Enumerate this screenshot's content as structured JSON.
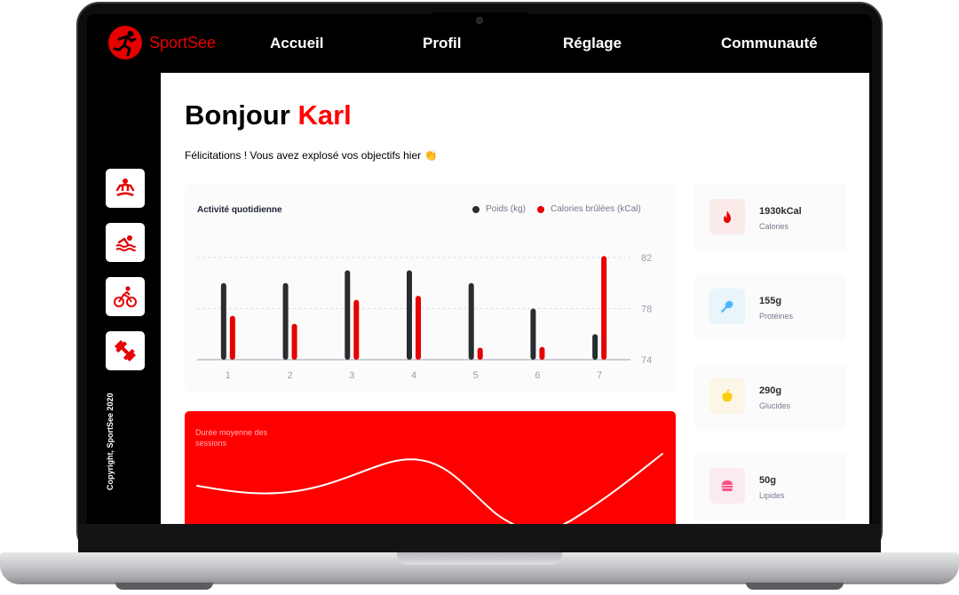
{
  "app": {
    "name": "SportSee"
  },
  "nav": {
    "items": [
      "Accueil",
      "Profil",
      "Réglage",
      "Communauté"
    ]
  },
  "sidebar": {
    "icons": [
      "meditation-icon",
      "swimming-icon",
      "cycling-icon",
      "dumbbell-icon"
    ],
    "copyright": "Copyright, SportSee 2020"
  },
  "greeting": {
    "hello": "Bonjour",
    "name": "Karl",
    "message": "Félicitations ! Vous avez explosé vos objectifs hier 👏"
  },
  "activity": {
    "title": "Activité quotidienne",
    "legend": {
      "weight": "Poids (kg)",
      "calories": "Calories brûlées (kCal)"
    }
  },
  "sessions": {
    "title": "Durée moyenne des sessions"
  },
  "key_data": [
    {
      "value": "1930kCal",
      "label": "Calories",
      "icon": "fire-icon"
    },
    {
      "value": "155g",
      "label": "Protéines",
      "icon": "chicken-icon"
    },
    {
      "value": "290g",
      "label": "Glucides",
      "icon": "apple-icon"
    },
    {
      "value": "50g",
      "label": "Lipides",
      "icon": "burger-icon"
    }
  ],
  "colors": {
    "brand": "#e60000",
    "weight_bar": "#282d30",
    "calories_bar": "#e60000",
    "calories_bg": "#fbeaea",
    "protein_bg": "#e9f4fb",
    "carbs_bg": "#fbf6e5",
    "fat_bg": "#fbeaef"
  },
  "chart_data": {
    "type": "bar",
    "categories": [
      "1",
      "2",
      "3",
      "4",
      "5",
      "6",
      "7"
    ],
    "series": [
      {
        "name": "Poids (kg)",
        "values": [
          80,
          80,
          81,
          81,
          80,
          78,
          76
        ]
      },
      {
        "name": "Calories brûlées (kCal)",
        "values": [
          240,
          220,
          280,
          290,
          160,
          162,
          390
        ]
      }
    ],
    "yticks": [
      "74",
      "78",
      "82"
    ],
    "ylim": [
      74,
      82
    ],
    "grid": true,
    "legend_position": "top-right"
  }
}
